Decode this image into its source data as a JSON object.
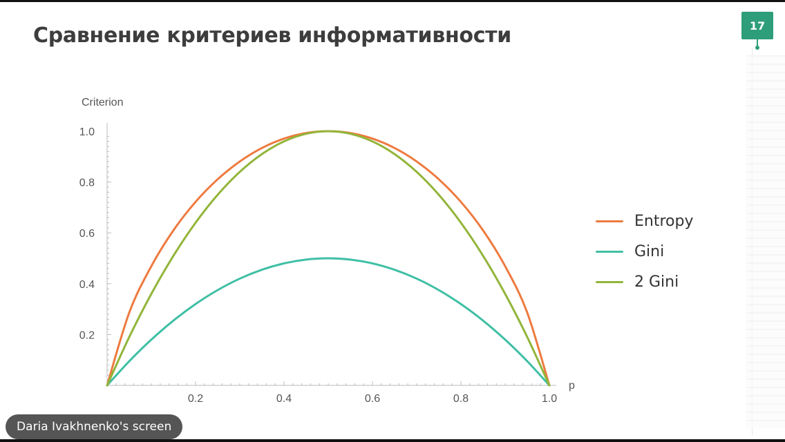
{
  "slide": {
    "title": "Сравнение критериев информативности",
    "page_number": "17",
    "accent_color": "#2e9e7a"
  },
  "screen_share": {
    "label": "Daria Ivakhnenko's screen"
  },
  "chart_data": {
    "type": "line",
    "title": "",
    "xlabel": "p",
    "ylabel": "Criterion",
    "xlim": [
      0,
      1
    ],
    "ylim": [
      0,
      1
    ],
    "xticks": [
      "0.2",
      "0.4",
      "0.6",
      "0.8",
      "1.0"
    ],
    "xtick_values": [
      0.2,
      0.4,
      0.6,
      0.8,
      1.0
    ],
    "yticks": [
      "0.2",
      "0.4",
      "0.6",
      "0.8",
      "1.0"
    ],
    "ytick_values": [
      0.2,
      0.4,
      0.6,
      0.8,
      1.0
    ],
    "legend_position": "right",
    "x": [
      0,
      0.05,
      0.1,
      0.15,
      0.2,
      0.25,
      0.3,
      0.35,
      0.4,
      0.45,
      0.5,
      0.55,
      0.6,
      0.65,
      0.7,
      0.75,
      0.8,
      0.85,
      0.9,
      0.95,
      1.0
    ],
    "series": [
      {
        "name": "Entropy",
        "color": "#ee7a3f",
        "values": [
          0,
          0.286,
          0.469,
          0.61,
          0.722,
          0.811,
          0.881,
          0.934,
          0.971,
          0.993,
          1.0,
          0.993,
          0.971,
          0.934,
          0.881,
          0.811,
          0.722,
          0.61,
          0.469,
          0.286,
          0
        ]
      },
      {
        "name": "Gini",
        "color": "#3fbfa5",
        "values": [
          0,
          0.095,
          0.18,
          0.255,
          0.32,
          0.375,
          0.42,
          0.455,
          0.48,
          0.495,
          0.5,
          0.495,
          0.48,
          0.455,
          0.42,
          0.375,
          0.32,
          0.255,
          0.18,
          0.095,
          0
        ]
      },
      {
        "name": "2 Gini",
        "color": "#92b53a",
        "values": [
          0,
          0.19,
          0.36,
          0.51,
          0.64,
          0.75,
          0.84,
          0.91,
          0.96,
          0.99,
          1.0,
          0.99,
          0.96,
          0.91,
          0.84,
          0.75,
          0.64,
          0.51,
          0.36,
          0.19,
          0
        ]
      }
    ]
  }
}
